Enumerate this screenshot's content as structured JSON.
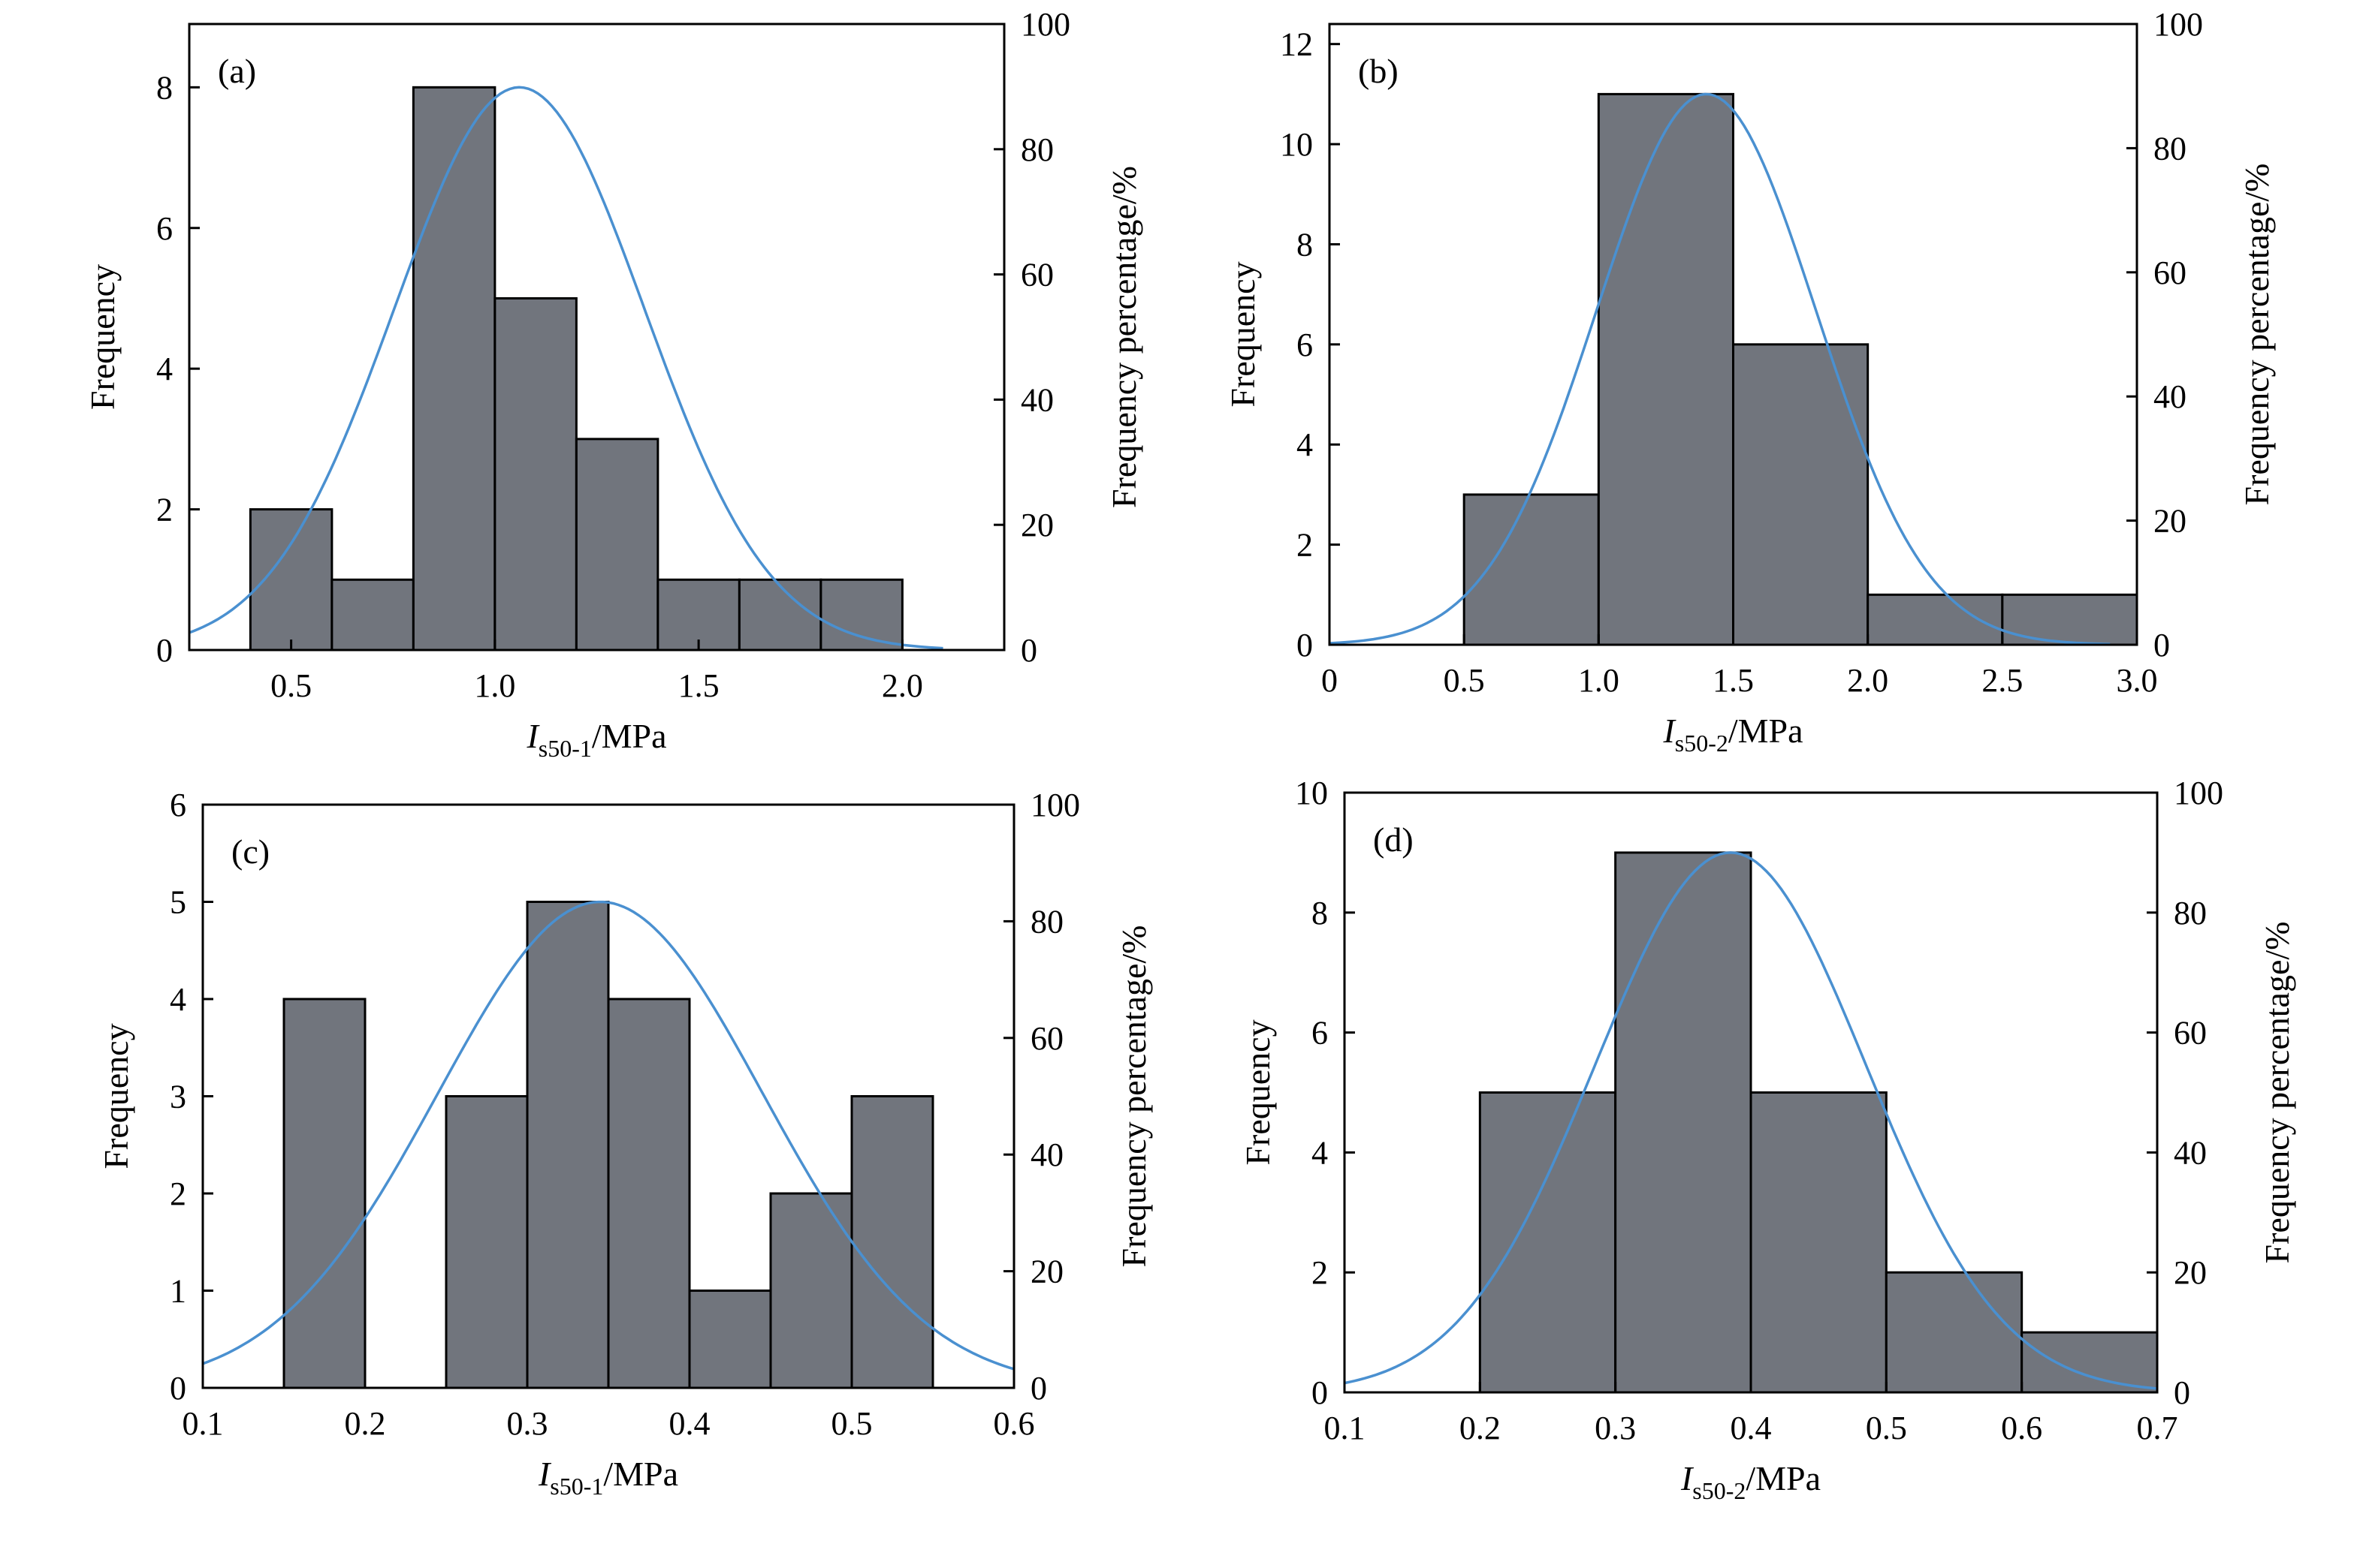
{
  "colors": {
    "bar_fill": "#71757d",
    "bar_stroke": "#000000",
    "curve": "#4a90d0",
    "axis": "#000000"
  },
  "chart_data": [
    {
      "type": "bar",
      "panel_label": "(a)",
      "bins": [
        {
          "x0": 0.4,
          "x1": 0.6,
          "count": 2
        },
        {
          "x0": 0.6,
          "x1": 0.8,
          "count": 1
        },
        {
          "x0": 0.8,
          "x1": 1.0,
          "count": 8
        },
        {
          "x0": 1.0,
          "x1": 1.2,
          "count": 5
        },
        {
          "x0": 1.2,
          "x1": 1.4,
          "count": 3
        },
        {
          "x0": 1.4,
          "x1": 1.6,
          "count": 1
        },
        {
          "x0": 1.6,
          "x1": 1.8,
          "count": 1
        },
        {
          "x0": 1.8,
          "x1": 2.0,
          "count": 1
        }
      ],
      "normal_fit": {
        "mean": 1.06,
        "sd": 0.307,
        "peak": 8.0,
        "x_start": 0.25,
        "x_end": 2.1
      },
      "xlim": [
        0.25,
        2.25
      ],
      "ylim": [
        0,
        8.9
      ],
      "y2lim": [
        0,
        100
      ],
      "xticks": [
        0.5,
        1.0,
        1.5,
        2.0
      ],
      "xtick_labels": [
        "0.5",
        "1.0",
        "1.5",
        "2.0"
      ],
      "yticks": [
        0,
        2,
        4,
        6,
        8
      ],
      "y2ticks": [
        0,
        20,
        40,
        60,
        80,
        100
      ],
      "xlabel_main": "I",
      "xlabel_sub": "s50-1",
      "xlabel_unit": "/MPa",
      "ylabel": "Frequency",
      "y2label": "Frequency percentage/%"
    },
    {
      "type": "bar",
      "panel_label": "(b)",
      "bins": [
        {
          "x0": 0.5,
          "x1": 1.0,
          "count": 3
        },
        {
          "x0": 1.0,
          "x1": 1.5,
          "count": 11
        },
        {
          "x0": 1.5,
          "x1": 2.0,
          "count": 6
        },
        {
          "x0": 2.0,
          "x1": 2.5,
          "count": 1
        },
        {
          "x0": 2.5,
          "x1": 3.0,
          "count": 1
        }
      ],
      "normal_fit": {
        "mean": 1.4,
        "sd": 0.408,
        "peak": 11.0,
        "x_start": 0.0,
        "x_end": 2.9
      },
      "xlim": [
        0,
        3.0
      ],
      "ylim": [
        0,
        12.4
      ],
      "y2lim": [
        0,
        100
      ],
      "xticks": [
        0,
        0.5,
        1.0,
        1.5,
        2.0,
        2.5,
        3.0
      ],
      "xtick_labels": [
        "0",
        "0.5",
        "1.0",
        "1.5",
        "2.0",
        "2.5",
        "3.0"
      ],
      "yticks": [
        0,
        2,
        4,
        6,
        8,
        10,
        12
      ],
      "y2ticks": [
        0,
        20,
        40,
        60,
        80,
        100
      ],
      "xlabel_main": "I",
      "xlabel_sub": "s50-2",
      "xlabel_unit": "/MPa",
      "ylabel": "Frequency",
      "y2label": "Frequency percentage/%"
    },
    {
      "type": "bar",
      "panel_label": "(c)",
      "bins": [
        {
          "x0": 0.15,
          "x1": 0.2,
          "count": 4
        },
        {
          "x0": 0.25,
          "x1": 0.3,
          "count": 3
        },
        {
          "x0": 0.3,
          "x1": 0.35,
          "count": 5
        },
        {
          "x0": 0.35,
          "x1": 0.4,
          "count": 4
        },
        {
          "x0": 0.4,
          "x1": 0.45,
          "count": 1
        },
        {
          "x0": 0.45,
          "x1": 0.5,
          "count": 2
        },
        {
          "x0": 0.5,
          "x1": 0.55,
          "count": 3
        }
      ],
      "normal_fit": {
        "mean": 0.345,
        "sd": 0.1,
        "peak": 5.0,
        "x_start": 0.1,
        "x_end": 0.6
      },
      "xlim": [
        0.1,
        0.6
      ],
      "ylim": [
        0,
        6
      ],
      "y2lim": [
        0,
        100
      ],
      "xticks": [
        0.1,
        0.2,
        0.3,
        0.4,
        0.5,
        0.6
      ],
      "xtick_labels": [
        "0.1",
        "0.2",
        "0.3",
        "0.4",
        "0.5",
        "0.6"
      ],
      "yticks": [
        0,
        1,
        2,
        3,
        4,
        5,
        6
      ],
      "y2ticks": [
        0,
        20,
        40,
        60,
        80,
        100
      ],
      "xlabel_main": "I",
      "xlabel_sub": "s50-1",
      "xlabel_unit": "/MPa",
      "ylabel": "Frequency",
      "y2label": "Frequency percentage/%"
    },
    {
      "type": "bar",
      "panel_label": "(d)",
      "bins": [
        {
          "x0": 0.2,
          "x1": 0.3,
          "count": 5
        },
        {
          "x0": 0.3,
          "x1": 0.4,
          "count": 9
        },
        {
          "x0": 0.4,
          "x1": 0.5,
          "count": 5
        },
        {
          "x0": 0.5,
          "x1": 0.6,
          "count": 2
        },
        {
          "x0": 0.6,
          "x1": 0.7,
          "count": 1
        }
      ],
      "normal_fit": {
        "mean": 0.385,
        "sd": 0.1,
        "peak": 9.0,
        "x_start": 0.1,
        "x_end": 0.7
      },
      "xlim": [
        0.1,
        0.7
      ],
      "ylim": [
        0,
        10
      ],
      "y2lim": [
        0,
        100
      ],
      "xticks": [
        0.1,
        0.2,
        0.3,
        0.4,
        0.5,
        0.6,
        0.7
      ],
      "xtick_labels": [
        "0.1",
        "0.2",
        "0.3",
        "0.4",
        "0.5",
        "0.6",
        "0.7"
      ],
      "yticks": [
        0,
        2,
        4,
        6,
        8,
        10
      ],
      "y2ticks": [
        0,
        20,
        40,
        60,
        80,
        100
      ],
      "xlabel_main": "I",
      "xlabel_sub": "s50-2",
      "xlabel_unit": "/MPa",
      "ylabel": "Frequency",
      "y2label": "Frequency percentage/%"
    }
  ]
}
